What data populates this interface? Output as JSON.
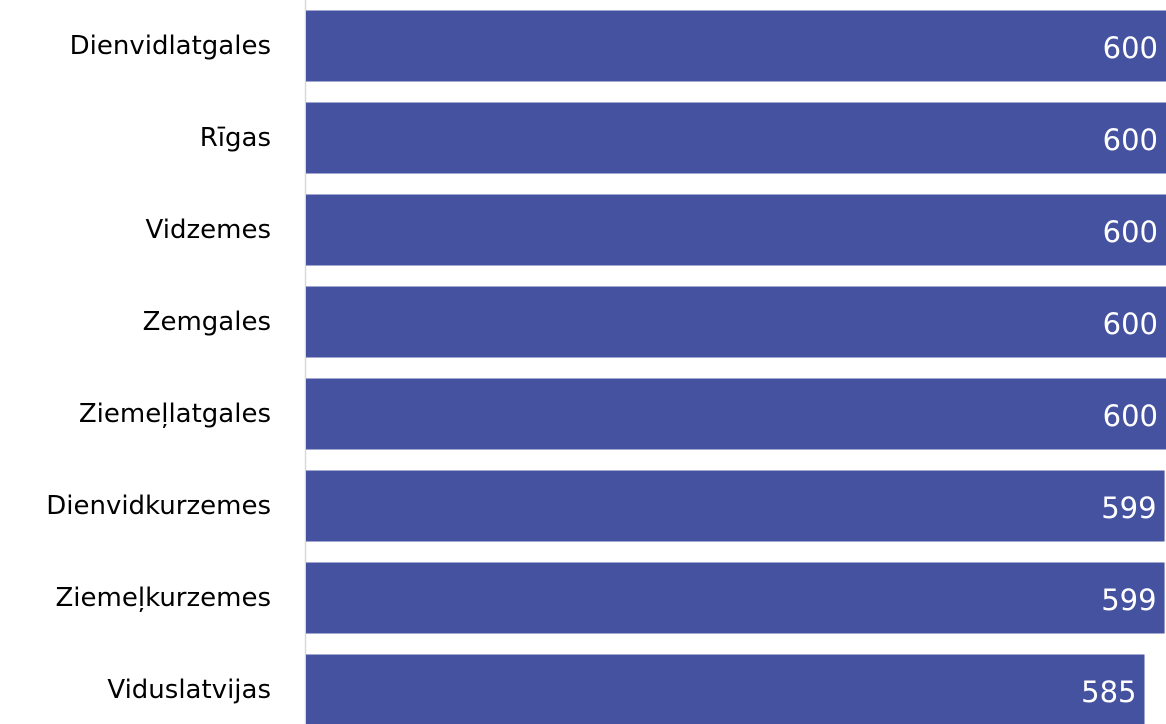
{
  "chart_data": {
    "type": "bar",
    "orientation": "horizontal",
    "categories": [
      "Dienvidlatgales",
      "Rīgas ",
      "Vidzemes",
      "Zemgales",
      "Ziemeļlatgales",
      "Dienvidkurzemes",
      "Ziemeļkurzemes",
      "Viduslatvijas"
    ],
    "values": [
      600,
      600,
      600,
      600,
      600,
      599,
      599,
      585
    ],
    "value_labels": [
      "600",
      "600",
      "600",
      "600",
      "600",
      "599",
      "599",
      "585"
    ],
    "xlim": [
      0,
      600
    ],
    "bar_color": "#4452A0",
    "title": "",
    "xlabel": "",
    "ylabel": ""
  }
}
